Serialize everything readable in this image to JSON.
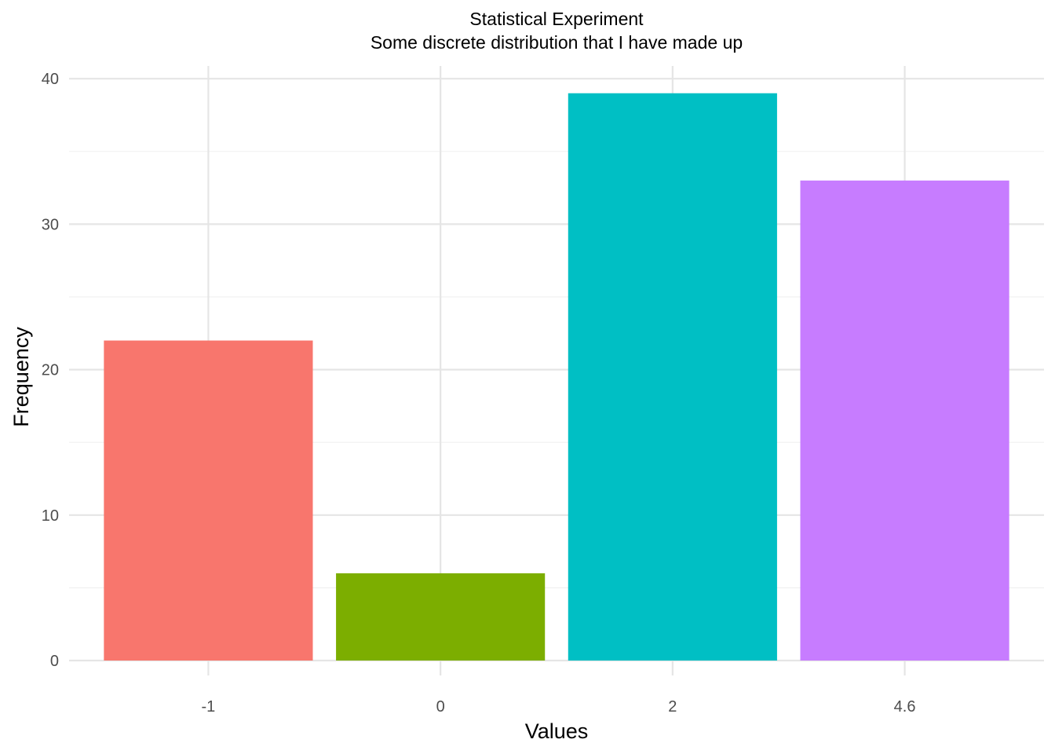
{
  "chart_data": {
    "type": "bar",
    "title": "Statistical Experiment",
    "subtitle": "Some discrete distribution that I have made up",
    "xlabel": "Values",
    "ylabel": "Frequency",
    "categories": [
      "-1",
      "0",
      "2",
      "4.6"
    ],
    "values": [
      22,
      6,
      39,
      33
    ],
    "colors": [
      "#F8766D",
      "#7CAE00",
      "#00BFC4",
      "#C77CFF"
    ],
    "ylim": [
      0,
      42
    ],
    "yticks": [
      0,
      10,
      20,
      30,
      40
    ],
    "grid": true,
    "legend": "none"
  }
}
